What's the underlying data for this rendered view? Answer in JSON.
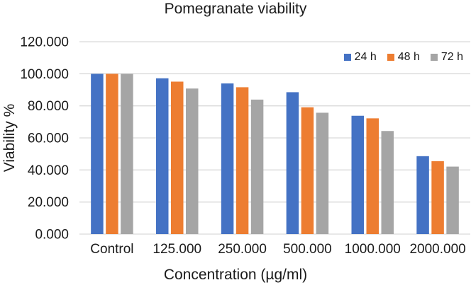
{
  "chart_data": {
    "type": "bar",
    "title": "Pomegranate viability",
    "xlabel": "Concentration (µg/ml)",
    "ylabel": "Viability %",
    "categories": [
      "Control",
      "125.000",
      "250.000",
      "500.000",
      "1000.000",
      "2000.000"
    ],
    "series": [
      {
        "name": "24 h",
        "color": "#4472C4",
        "values": [
          100.0,
          97.2,
          94.0,
          88.5,
          73.8,
          48.6
        ]
      },
      {
        "name": "48 h",
        "color": "#ED7D31",
        "values": [
          100.0,
          95.1,
          91.6,
          79.1,
          72.2,
          45.5
        ]
      },
      {
        "name": "72 h",
        "color": "#A5A5A5",
        "values": [
          100.0,
          90.8,
          83.9,
          75.7,
          64.3,
          42.1
        ]
      }
    ],
    "ylim": [
      0,
      120
    ],
    "ytick_step": 20,
    "ytick_labels": [
      "0.000",
      "20.000",
      "40.000",
      "60.000",
      "80.000",
      "100.000",
      "120.000"
    ],
    "grid": true,
    "gridline_color": "#d9d9d9",
    "legend_position": "top-right"
  }
}
